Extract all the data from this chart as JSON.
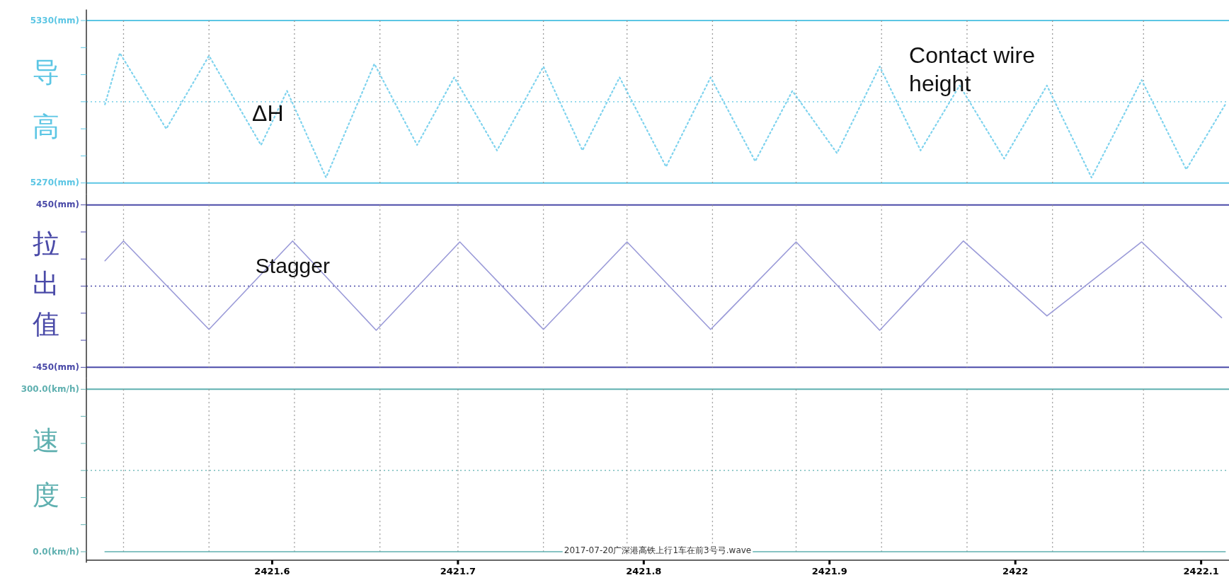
{
  "chart_data": [
    {
      "type": "line",
      "ylabel": "导高",
      "xlim": [
        2421.5,
        2422.115
      ],
      "ylim": [
        5270,
        5330
      ],
      "tick_labels": "y",
      "line_style": "dotted",
      "yticks": [
        {
          "value": 5330,
          "label": "5330(mm)"
        },
        {
          "value": 5320,
          "label": null
        },
        {
          "value": 5310,
          "label": null
        },
        {
          "value": 5300,
          "label": null
        },
        {
          "value": 5290,
          "label": null
        },
        {
          "value": 5280,
          "label": null
        },
        {
          "value": 5270,
          "label": "5270(mm)"
        }
      ],
      "series": [
        {
          "color": "#7fd3ee",
          "x": [
            2421.51,
            2421.518,
            2421.543,
            2421.566,
            2421.594,
            2421.608,
            2421.629,
            2421.655,
            2421.678,
            2421.698,
            2421.721,
            2421.746,
            2421.767,
            2421.787,
            2421.812,
            2421.836,
            2421.86,
            2421.88,
            2421.904,
            2421.927,
            2421.949,
            2421.97,
            2421.994,
            2422.017,
            2422.041,
            2422.068,
            2422.092,
            2422.113
          ],
          "values": [
            5299,
            5318,
            5290,
            5317,
            5284,
            5304,
            5272,
            5314,
            5284,
            5309,
            5282,
            5313,
            5282,
            5309,
            5276,
            5309,
            5278,
            5304,
            5281,
            5313,
            5282,
            5306,
            5279,
            5306,
            5272,
            5308,
            5275,
            5299
          ]
        }
      ],
      "ref_lines": [
        {
          "axis": "y",
          "value": 5300,
          "color": "#5cc6e4",
          "line_style": "dotted"
        },
        {
          "axis": "x",
          "value": 2421.52,
          "color": "#9a9a9a",
          "line_style": "dotted"
        },
        {
          "axis": "x",
          "value": 2421.566,
          "color": "#9a9a9a",
          "line_style": "dotted"
        },
        {
          "axis": "x",
          "value": 2421.612,
          "color": "#9a9a9a",
          "line_style": "dotted"
        },
        {
          "axis": "x",
          "value": 2421.658,
          "color": "#9a9a9a",
          "line_style": "dotted"
        },
        {
          "axis": "x",
          "value": 2421.7,
          "color": "#9a9a9a",
          "line_style": "dotted"
        },
        {
          "axis": "x",
          "value": 2421.746,
          "color": "#9a9a9a",
          "line_style": "dotted"
        },
        {
          "axis": "x",
          "value": 2421.791,
          "color": "#9a9a9a",
          "line_style": "dotted"
        },
        {
          "axis": "x",
          "value": 2421.837,
          "color": "#9a9a9a",
          "line_style": "dotted"
        },
        {
          "axis": "x",
          "value": 2421.882,
          "color": "#9a9a9a",
          "line_style": "dotted"
        },
        {
          "axis": "x",
          "value": 2421.928,
          "color": "#9a9a9a",
          "line_style": "dotted"
        },
        {
          "axis": "x",
          "value": 2421.974,
          "color": "#9a9a9a",
          "line_style": "dotted"
        },
        {
          "axis": "x",
          "value": 2422.02,
          "color": "#9a9a9a",
          "line_style": "dotted"
        },
        {
          "axis": "x",
          "value": 2422.069,
          "color": "#9a9a9a",
          "line_style": "dotted"
        }
      ],
      "annotations": [
        "ΔH",
        "Contact wire height"
      ]
    },
    {
      "type": "line",
      "ylabel": "拉出值",
      "xlim": [
        2421.5,
        2422.115
      ],
      "ylim": [
        -450,
        450
      ],
      "tick_labels": "y",
      "line_style": "solid",
      "yticks": [
        {
          "value": 450,
          "label": "450(mm)"
        },
        {
          "value": 300,
          "label": null
        },
        {
          "value": 150,
          "label": null
        },
        {
          "value": 0,
          "label": null
        },
        {
          "value": -150,
          "label": null
        },
        {
          "value": -300,
          "label": null
        },
        {
          "value": -450,
          "label": "-450(mm)"
        }
      ],
      "series": [
        {
          "color": "#9a9ad8",
          "x": [
            2421.51,
            2421.52,
            2421.566,
            2421.611,
            2421.656,
            2421.701,
            2421.746,
            2421.791,
            2421.836,
            2421.882,
            2421.927,
            2421.972,
            2422.017,
            2422.068,
            2422.111
          ],
          "values": [
            140,
            250,
            -240,
            250,
            -245,
            245,
            -240,
            245,
            -240,
            245,
            -245,
            250,
            -165,
            245,
            -175
          ]
        }
      ],
      "ref_lines": [
        {
          "axis": "y",
          "value": 0,
          "color": "#4a4aa8",
          "line_style": "dotted"
        },
        {
          "axis": "x",
          "value": 2421.52,
          "color": "#9a9a9a",
          "line_style": "dotted"
        },
        {
          "axis": "x",
          "value": 2421.566,
          "color": "#9a9a9a",
          "line_style": "dotted"
        },
        {
          "axis": "x",
          "value": 2421.612,
          "color": "#9a9a9a",
          "line_style": "dotted"
        },
        {
          "axis": "x",
          "value": 2421.658,
          "color": "#9a9a9a",
          "line_style": "dotted"
        },
        {
          "axis": "x",
          "value": 2421.7,
          "color": "#9a9a9a",
          "line_style": "dotted"
        },
        {
          "axis": "x",
          "value": 2421.746,
          "color": "#9a9a9a",
          "line_style": "dotted"
        },
        {
          "axis": "x",
          "value": 2421.791,
          "color": "#9a9a9a",
          "line_style": "dotted"
        },
        {
          "axis": "x",
          "value": 2421.837,
          "color": "#9a9a9a",
          "line_style": "dotted"
        },
        {
          "axis": "x",
          "value": 2421.882,
          "color": "#9a9a9a",
          "line_style": "dotted"
        },
        {
          "axis": "x",
          "value": 2421.928,
          "color": "#9a9a9a",
          "line_style": "dotted"
        },
        {
          "axis": "x",
          "value": 2421.974,
          "color": "#9a9a9a",
          "line_style": "dotted"
        },
        {
          "axis": "x",
          "value": 2422.02,
          "color": "#9a9a9a",
          "line_style": "dotted"
        },
        {
          "axis": "x",
          "value": 2422.069,
          "color": "#9a9a9a",
          "line_style": "dotted"
        }
      ],
      "annotations": [
        "Stagger"
      ]
    },
    {
      "type": "line",
      "ylabel": "速度",
      "xlim": [
        2421.5,
        2422.115
      ],
      "ylim": [
        0,
        300
      ],
      "line_style": "solid",
      "xticks": [
        2421.6,
        2421.7,
        2421.8,
        2421.9,
        2422.0,
        2422.1
      ],
      "yticks": [
        {
          "value": 300,
          "label": "300.0(km/h)"
        },
        {
          "value": 250,
          "label": null
        },
        {
          "value": 200,
          "label": null
        },
        {
          "value": 150,
          "label": null
        },
        {
          "value": 100,
          "label": null
        },
        {
          "value": 50,
          "label": null
        },
        {
          "value": 0,
          "label": "0.0(km/h)"
        }
      ],
      "series": [
        {
          "color": "#5fb0b0",
          "x": [
            2421.51,
            2422.113
          ],
          "values": [
            0,
            0
          ]
        }
      ],
      "ref_lines": [
        {
          "axis": "y",
          "value": 150,
          "color": "#5fb0b0",
          "line_style": "dotted"
        },
        {
          "axis": "x",
          "value": 2421.52,
          "color": "#9a9a9a",
          "line_style": "dotted"
        },
        {
          "axis": "x",
          "value": 2421.566,
          "color": "#9a9a9a",
          "line_style": "dotted"
        },
        {
          "axis": "x",
          "value": 2421.612,
          "color": "#9a9a9a",
          "line_style": "dotted"
        },
        {
          "axis": "x",
          "value": 2421.658,
          "color": "#9a9a9a",
          "line_style": "dotted"
        },
        {
          "axis": "x",
          "value": 2421.7,
          "color": "#9a9a9a",
          "line_style": "dotted"
        },
        {
          "axis": "x",
          "value": 2421.746,
          "color": "#9a9a9a",
          "line_style": "dotted"
        },
        {
          "axis": "x",
          "value": 2421.791,
          "color": "#9a9a9a",
          "line_style": "dotted"
        },
        {
          "axis": "x",
          "value": 2421.837,
          "color": "#9a9a9a",
          "line_style": "dotted"
        },
        {
          "axis": "x",
          "value": 2421.882,
          "color": "#9a9a9a",
          "line_style": "dotted"
        },
        {
          "axis": "x",
          "value": 2421.928,
          "color": "#9a9a9a",
          "line_style": "dotted"
        },
        {
          "axis": "x",
          "value": 2421.974,
          "color": "#9a9a9a",
          "line_style": "dotted"
        },
        {
          "axis": "x",
          "value": 2422.02,
          "color": "#9a9a9a",
          "line_style": "dotted"
        },
        {
          "axis": "x",
          "value": 2422.069,
          "color": "#9a9a9a",
          "line_style": "dotted"
        }
      ],
      "annotations": [
        "2017-07-20广深港高铁上行1车在前3号弓.wave"
      ]
    }
  ]
}
